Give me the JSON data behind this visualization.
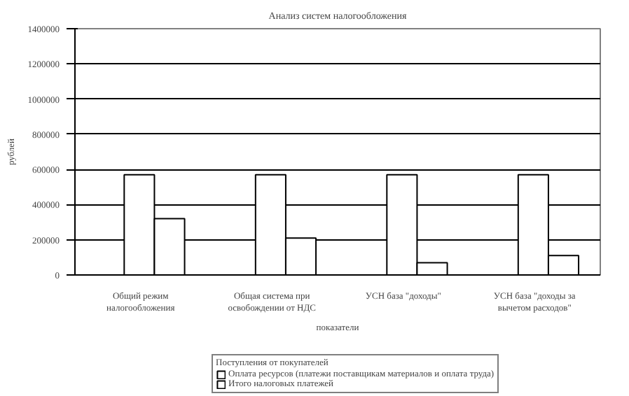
{
  "chart_data": {
    "type": "bar",
    "title": "Анализ систем налогообложения",
    "xlabel": "показатели",
    "ylabel": "рублей",
    "legend_title": "Поступления от покупателей",
    "categories": [
      "Общий режим налогообложения",
      "Общая система при освобождении от НДС",
      "УСН база \"доходы\"",
      "УСН база \"доходы за вычетом расходов\""
    ],
    "series": [
      {
        "name": "Оплата ресурсов (платежи поставщикам материалов и оплата труда)",
        "color": "#ffffff",
        "values": [
          570000,
          570000,
          570000,
          570000
        ]
      },
      {
        "name": "Итого налоговых платежей",
        "color": "#ffffff",
        "values": [
          320000,
          210000,
          70000,
          110000
        ]
      }
    ],
    "ylim": [
      0,
      1400000
    ],
    "yticks": [
      0,
      200000,
      400000,
      600000,
      800000,
      1000000,
      1200000,
      1400000
    ],
    "grid": "y",
    "legend": "bottom"
  }
}
